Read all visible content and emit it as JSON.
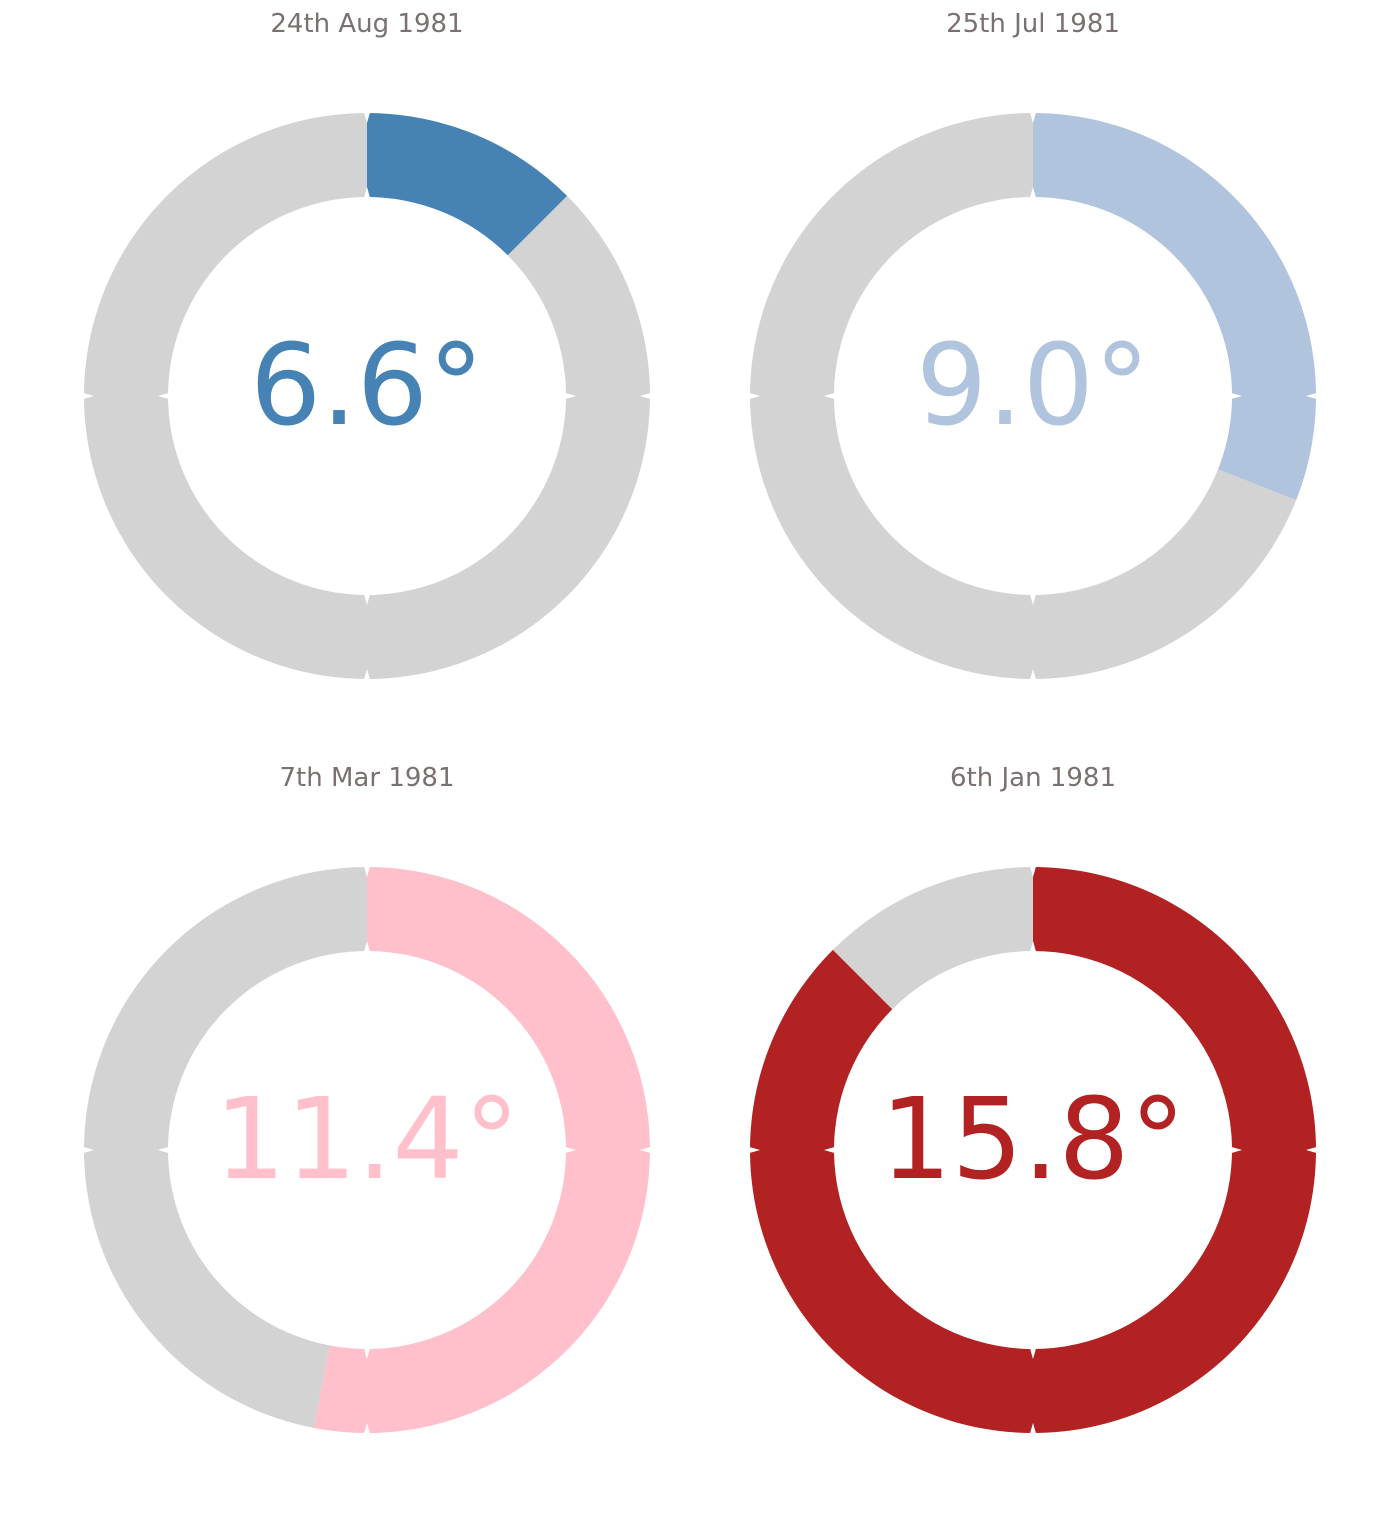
{
  "chart_data": [
    {
      "type": "pie",
      "title": "24th Aug 1981",
      "label": "6.6°",
      "fraction": 0.125,
      "color": "#4682b4",
      "track_color": "#d3d3d3"
    },
    {
      "type": "pie",
      "title": "25th Jul 1981",
      "label": "9.0°",
      "fraction": 0.31,
      "color": "#b0c4de",
      "track_color": "#d3d3d3"
    },
    {
      "type": "pie",
      "title": "7th Mar 1981",
      "label": "11.4°",
      "fraction": 0.53,
      "color": "#ffc0cb",
      "track_color": "#d3d3d3"
    },
    {
      "type": "pie",
      "title": "6th Jan 1981",
      "label": "15.8°",
      "fraction": 0.875,
      "color": "#b22222",
      "track_color": "#d3d3d3"
    }
  ]
}
